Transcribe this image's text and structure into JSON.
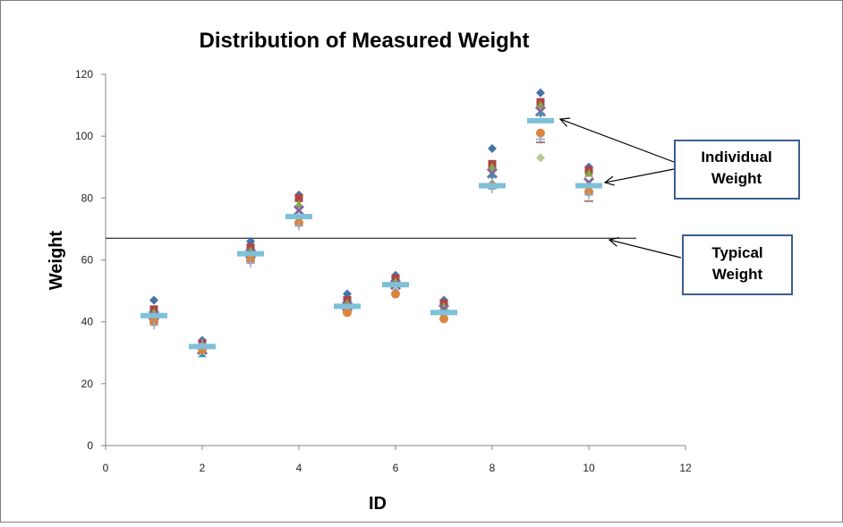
{
  "chart_data": {
    "type": "scatter",
    "title": "Distribution of Measured Weight",
    "xlabel": "ID",
    "ylabel": "Weight",
    "xlim": [
      0,
      12
    ],
    "ylim": [
      0,
      120
    ],
    "xticks": [
      0,
      2,
      4,
      6,
      8,
      10,
      12
    ],
    "yticks": [
      0,
      20,
      40,
      60,
      80,
      100,
      120
    ],
    "grid": false,
    "typical_weight_line": 67,
    "typical_weights": [
      {
        "x": 1,
        "y": 42
      },
      {
        "x": 2,
        "y": 32
      },
      {
        "x": 3,
        "y": 62
      },
      {
        "x": 4,
        "y": 74
      },
      {
        "x": 5,
        "y": 45
      },
      {
        "x": 6,
        "y": 52
      },
      {
        "x": 7,
        "y": 43
      },
      {
        "x": 8,
        "y": 84
      },
      {
        "x": 9,
        "y": 105
      },
      {
        "x": 10,
        "y": 84
      }
    ],
    "individual_weights": [
      {
        "x": 1,
        "values": [
          47,
          44,
          43,
          42,
          41,
          40,
          39
        ]
      },
      {
        "x": 2,
        "values": [
          34,
          33,
          32,
          31,
          30,
          31,
          33
        ]
      },
      {
        "x": 3,
        "values": [
          66,
          64,
          63,
          62,
          61,
          60,
          59
        ]
      },
      {
        "x": 4,
        "values": [
          81,
          80,
          78,
          76,
          73,
          72,
          71
        ]
      },
      {
        "x": 5,
        "values": [
          49,
          47,
          46,
          45,
          44,
          43
        ]
      },
      {
        "x": 6,
        "values": [
          55,
          54,
          53,
          52,
          51,
          49
        ]
      },
      {
        "x": 7,
        "values": [
          47,
          46,
          45,
          44,
          42,
          41
        ]
      },
      {
        "x": 8,
        "values": [
          96,
          91,
          90,
          88,
          86,
          84,
          83
        ]
      },
      {
        "x": 9,
        "values": [
          114,
          111,
          110,
          108,
          106,
          101,
          99,
          98,
          93
        ]
      },
      {
        "x": 10,
        "values": [
          90,
          89,
          88,
          85,
          83,
          82,
          81,
          79
        ]
      }
    ],
    "marker_colors": [
      "#4572a7",
      "#aa4643",
      "#89a54e",
      "#80699b",
      "#3d96ae",
      "#db843d",
      "#92a8cd",
      "#a47d7c",
      "#b5ca92"
    ],
    "typical_marker_color": "#7ec0d8"
  },
  "callouts": {
    "individual_line1": "Individual",
    "individual_line2": "Weight",
    "typical_line1": "Typical",
    "typical_line2": "Weight"
  }
}
